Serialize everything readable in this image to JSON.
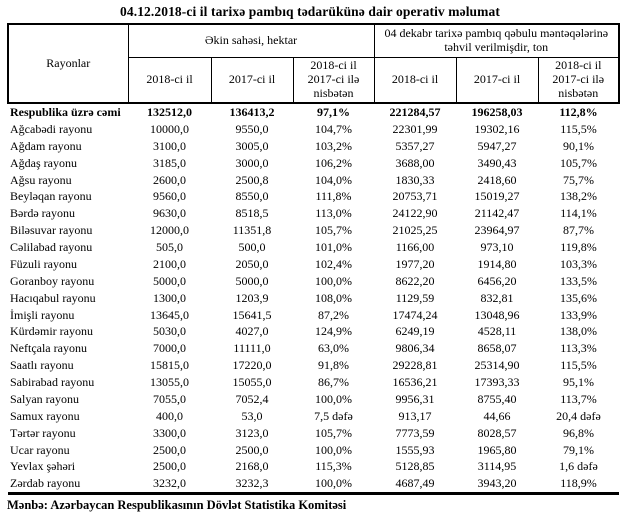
{
  "title": "04.12.2018-ci il tarixə pambıq tədarükünə dair operativ məlumat",
  "table": {
    "header": {
      "rayonlar": "Rayonlar",
      "group1": "Əkin sahəsi, hektar",
      "group2": "04 dekabr tarixə pambıq qəbulu məntəqələrinə təhvil verilmişdir, ton",
      "columns": {
        "y2018": "2018-ci il",
        "y2017": "2017-ci il",
        "ratio": "2018-ci il 2017-ci ilə nisbətən"
      }
    },
    "total_row": {
      "name": "Respublika üzrə cəmi",
      "values": [
        "132512,0",
        "136413,2",
        "97,1%",
        "221284,57",
        "196258,03",
        "112,8%"
      ]
    },
    "rows": [
      {
        "name": "Ağcabədi rayonu",
        "values": [
          "10000,0",
          "9550,0",
          "104,7%",
          "22301,99",
          "19302,16",
          "115,5%"
        ]
      },
      {
        "name": "Ağdam rayonu",
        "values": [
          "3100,0",
          "3005,0",
          "103,2%",
          "5357,27",
          "5947,27",
          "90,1%"
        ]
      },
      {
        "name": "Ağdaş rayonu",
        "values": [
          "3185,0",
          "3000,0",
          "106,2%",
          "3688,00",
          "3490,43",
          "105,7%"
        ]
      },
      {
        "name": "Ağsu rayonu",
        "values": [
          "2600,0",
          "2500,8",
          "104,0%",
          "1830,33",
          "2418,60",
          "75,7%"
        ]
      },
      {
        "name": "Beyləqan rayonu",
        "values": [
          "9560,0",
          "8550,0",
          "111,8%",
          "20753,71",
          "15019,27",
          "138,2%"
        ]
      },
      {
        "name": "Bərdə rayonu",
        "values": [
          "9630,0",
          "8518,5",
          "113,0%",
          "24122,90",
          "21142,47",
          "114,1%"
        ]
      },
      {
        "name": "Biləsuvar rayonu",
        "values": [
          "12000,0",
          "11351,8",
          "105,7%",
          "21025,25",
          "23964,97",
          "87,7%"
        ]
      },
      {
        "name": "Cəlilabad rayonu",
        "values": [
          "505,0",
          "500,0",
          "101,0%",
          "1166,00",
          "973,10",
          "119,8%"
        ]
      },
      {
        "name": "Füzuli rayonu",
        "values": [
          "2100,0",
          "2050,0",
          "102,4%",
          "1977,20",
          "1914,80",
          "103,3%"
        ]
      },
      {
        "name": "Goranboy rayonu",
        "values": [
          "5000,0",
          "5000,0",
          "100,0%",
          "8622,20",
          "6456,20",
          "133,5%"
        ]
      },
      {
        "name": "Hacıqabul rayonu",
        "values": [
          "1300,0",
          "1203,9",
          "108,0%",
          "1129,59",
          "832,81",
          "135,6%"
        ]
      },
      {
        "name": "İmişli rayonu",
        "values": [
          "13645,0",
          "15641,5",
          "87,2%",
          "17474,24",
          "13048,96",
          "133,9%"
        ]
      },
      {
        "name": "Kürdəmir rayonu",
        "values": [
          "5030,0",
          "4027,0",
          "124,9%",
          "6249,19",
          "4528,11",
          "138,0%"
        ]
      },
      {
        "name": "Neftçala rayonu",
        "values": [
          "7000,0",
          "11111,0",
          "63,0%",
          "9806,34",
          "8658,07",
          "113,3%"
        ]
      },
      {
        "name": "Saatlı rayonu",
        "values": [
          "15815,0",
          "17220,0",
          "91,8%",
          "29228,81",
          "25314,90",
          "115,5%"
        ]
      },
      {
        "name": "Sabirabad rayonu",
        "values": [
          "13055,0",
          "15055,0",
          "86,7%",
          "16536,21",
          "17393,33",
          "95,1%"
        ]
      },
      {
        "name": "Salyan rayonu",
        "values": [
          "7055,0",
          "7052,4",
          "100,0%",
          "9956,31",
          "8755,40",
          "113,7%"
        ]
      },
      {
        "name": "Samux rayonu",
        "values": [
          "400,0",
          "53,0",
          "7,5 dəfə",
          "913,17",
          "44,66",
          "20,4 dəfə"
        ]
      },
      {
        "name": "Tərtər rayonu",
        "values": [
          "3300,0",
          "3123,0",
          "105,7%",
          "7773,59",
          "8028,57",
          "96,8%"
        ]
      },
      {
        "name": "Ucar rayonu",
        "values": [
          "2500,0",
          "2500,0",
          "100,0%",
          "1555,93",
          "1965,80",
          "79,1%"
        ]
      },
      {
        "name": "Yevlax şəhəri",
        "values": [
          "2500,0",
          "2168,0",
          "115,3%",
          "5128,85",
          "3114,95",
          "1,6 dəfə"
        ]
      },
      {
        "name": "Zərdab rayonu",
        "values": [
          "3232,0",
          "3232,3",
          "100,0%",
          "4687,49",
          "3943,20",
          "118,9%"
        ]
      }
    ]
  },
  "footer": "Mənbə: Azərbaycan Respublikasının Dövlət Statistika Komitəsi"
}
